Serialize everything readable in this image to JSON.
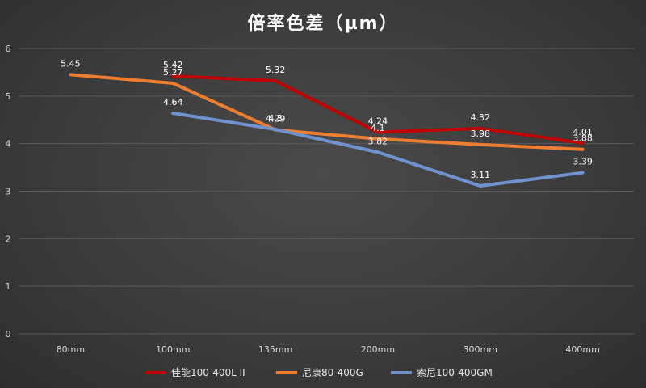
{
  "chart_data": {
    "type": "line",
    "title": "倍率色差（µm）",
    "categories": [
      "80mm",
      "100mm",
      "135mm",
      "200mm",
      "300mm",
      "400mm"
    ],
    "ylim": [
      0,
      6
    ],
    "yticks": [
      0,
      1,
      2,
      3,
      4,
      5,
      6
    ],
    "grid": true,
    "legend_position": "bottom",
    "series": [
      {
        "name": "佳能100-400L II",
        "color": "#c00000",
        "values": [
          null,
          5.42,
          5.32,
          4.24,
          4.32,
          4.01
        ]
      },
      {
        "name": "尼康80-400G",
        "color": "#ed7d31",
        "values": [
          5.45,
          5.27,
          4.29,
          4.1,
          3.98,
          3.88
        ]
      },
      {
        "name": "索尼100-400GM",
        "color": "#7093cf",
        "values": [
          null,
          4.64,
          4.3,
          3.82,
          3.11,
          3.39
        ]
      }
    ]
  }
}
